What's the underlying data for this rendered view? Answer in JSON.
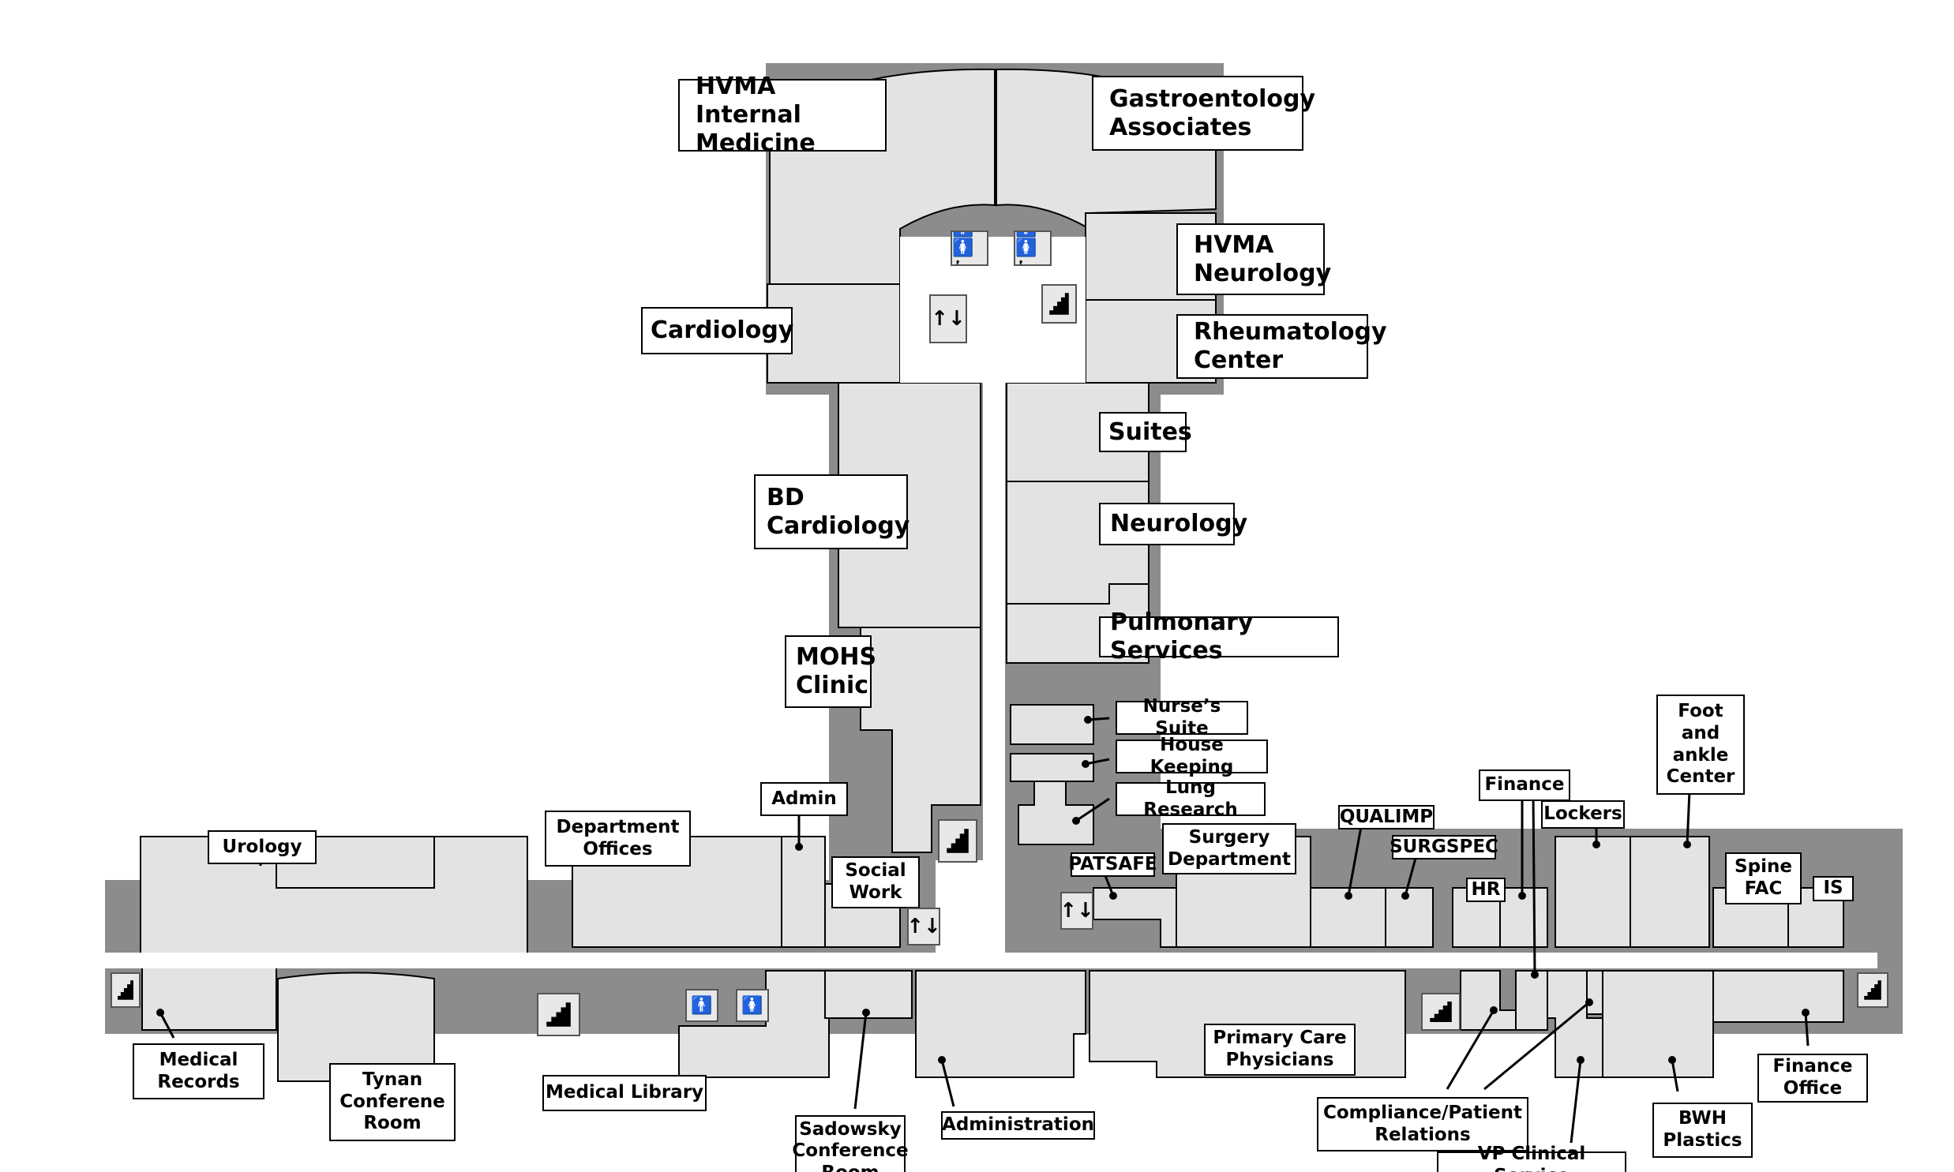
{
  "map": {
    "labels": [
      {
        "key": "hvma_internal_medicine",
        "text": "HVMA Internal\nMedicine"
      },
      {
        "key": "gastroenterology",
        "text": "Gastroentology\nAssociates"
      },
      {
        "key": "hvma_neurology",
        "text": "HVMA\nNeurology"
      },
      {
        "key": "cardiology",
        "text": "Cardiology"
      },
      {
        "key": "rheumatology",
        "text": "Rheumatology\nCenter"
      },
      {
        "key": "suites",
        "text": "Suites"
      },
      {
        "key": "bd_cardiology",
        "text": "BD\nCardiology"
      },
      {
        "key": "neurology",
        "text": "Neurology"
      },
      {
        "key": "pulmonary",
        "text": "Pulmonary Services"
      },
      {
        "key": "mohs",
        "text": "MOHS\nClinic"
      },
      {
        "key": "nurses_suite",
        "text": "Nurse’s Suite"
      },
      {
        "key": "house_keeping",
        "text": "House Keeping"
      },
      {
        "key": "lung_research",
        "text": "Lung Research"
      },
      {
        "key": "admin",
        "text": "Admin"
      },
      {
        "key": "department_offices",
        "text": "Department\nOffices"
      },
      {
        "key": "urology",
        "text": "Urology"
      },
      {
        "key": "social_work",
        "text": "Social\nWork"
      },
      {
        "key": "patsafe",
        "text": "PATSAFE"
      },
      {
        "key": "surgery_department",
        "text": "Surgery\nDepartment"
      },
      {
        "key": "qualimp",
        "text": "QUALIMP"
      },
      {
        "key": "surgspec",
        "text": "SURGSPEC"
      },
      {
        "key": "finance",
        "text": "Finance"
      },
      {
        "key": "lockers",
        "text": "Lockers"
      },
      {
        "key": "foot_ankle",
        "text": "Foot\nand\nankle\nCenter"
      },
      {
        "key": "hr",
        "text": "HR"
      },
      {
        "key": "spine_fac",
        "text": "Spine\nFAC"
      },
      {
        "key": "is",
        "text": "IS"
      },
      {
        "key": "medical_records",
        "text": "Medical\nRecords"
      },
      {
        "key": "tynan",
        "text": "Tynan\nConferene\nRoom"
      },
      {
        "key": "medical_library",
        "text": "Medical Library"
      },
      {
        "key": "sadowsky",
        "text": "Sadowsky\nConference\nRoom"
      },
      {
        "key": "administration",
        "text": "Administration"
      },
      {
        "key": "primary_care",
        "text": "Primary Care\nPhysicians"
      },
      {
        "key": "compliance",
        "text": "Compliance/Patient\nRelations"
      },
      {
        "key": "vp_clinical",
        "text": "VP Clinical Service"
      },
      {
        "key": "bwh_plastics",
        "text": "BWH\nPlastics"
      },
      {
        "key": "finance_office",
        "text": "Finance\nOffice"
      }
    ],
    "icons": [
      {
        "type": "restroom",
        "icon": "restroom-icon",
        "glyph": "🚹🚺♿"
      },
      {
        "type": "restroom",
        "icon": "restroom-icon",
        "glyph": "🚹🚺♿"
      },
      {
        "type": "elevator",
        "icon": "elevator-icon",
        "glyph": "↑↓"
      },
      {
        "type": "stairs",
        "icon": "stairs-icon",
        "glyph": ""
      },
      {
        "type": "stairs",
        "icon": "stairs-icon",
        "glyph": ""
      },
      {
        "type": "elevator",
        "icon": "elevator-icon",
        "glyph": "↑↓"
      },
      {
        "type": "elevator",
        "icon": "elevator-icon",
        "glyph": "↑↓"
      },
      {
        "type": "stairs",
        "icon": "stairs-icon",
        "glyph": ""
      },
      {
        "type": "stairs",
        "icon": "stairs-icon",
        "glyph": ""
      },
      {
        "type": "restroom-men",
        "icon": "mens-restroom-icon",
        "glyph": "🚹"
      },
      {
        "type": "restroom-women",
        "icon": "womens-restroom-icon",
        "glyph": "🚺"
      },
      {
        "type": "stairs",
        "icon": "stairs-icon",
        "glyph": ""
      },
      {
        "type": "stairs",
        "icon": "stairs-icon",
        "glyph": ""
      }
    ]
  }
}
